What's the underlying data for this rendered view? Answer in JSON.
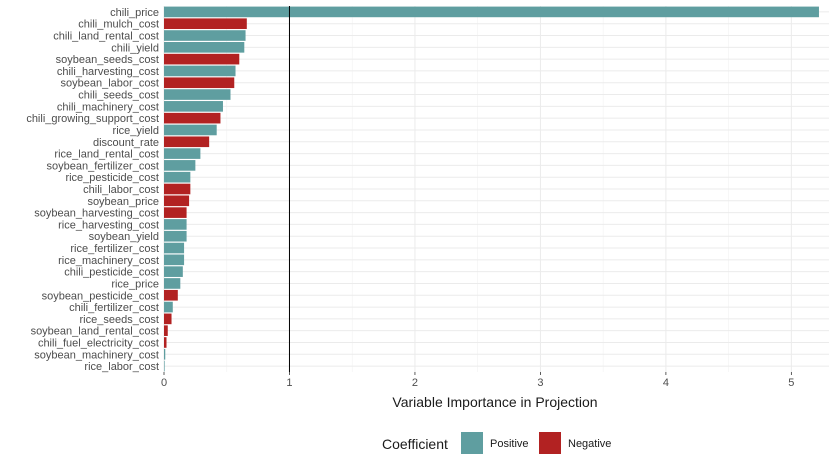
{
  "chart_data": {
    "type": "bar",
    "orientation": "horizontal",
    "xlabel": "Variable Importance in Projection",
    "ylabel": "",
    "xlim": [
      0,
      5.3
    ],
    "xticks": [
      0,
      1,
      2,
      3,
      4,
      5
    ],
    "reference_line": 1,
    "grid": true,
    "legend": {
      "title": "Coefficient",
      "placement": "bottom",
      "entries": [
        {
          "label": "Positive",
          "color": "#5f9ea0"
        },
        {
          "label": "Negative",
          "color": "#b22222"
        }
      ]
    },
    "bars": [
      {
        "name": "chili_price",
        "value": 5.22,
        "sign": "Positive"
      },
      {
        "name": "chili_mulch_cost",
        "value": 0.66,
        "sign": "Negative"
      },
      {
        "name": "chili_land_rental_cost",
        "value": 0.65,
        "sign": "Positive"
      },
      {
        "name": "chili_yield",
        "value": 0.64,
        "sign": "Positive"
      },
      {
        "name": "soybean_seeds_cost",
        "value": 0.6,
        "sign": "Negative"
      },
      {
        "name": "chili_harvesting_cost",
        "value": 0.57,
        "sign": "Positive"
      },
      {
        "name": "soybean_labor_cost",
        "value": 0.56,
        "sign": "Negative"
      },
      {
        "name": "chili_seeds_cost",
        "value": 0.53,
        "sign": "Positive"
      },
      {
        "name": "chili_machinery_cost",
        "value": 0.47,
        "sign": "Positive"
      },
      {
        "name": "chili_growing_support_cost",
        "value": 0.45,
        "sign": "Negative"
      },
      {
        "name": "rice_yield",
        "value": 0.42,
        "sign": "Positive"
      },
      {
        "name": "discount_rate",
        "value": 0.36,
        "sign": "Negative"
      },
      {
        "name": "rice_land_rental_cost",
        "value": 0.29,
        "sign": "Positive"
      },
      {
        "name": "soybean_fertilizer_cost",
        "value": 0.25,
        "sign": "Positive"
      },
      {
        "name": "rice_pesticide_cost",
        "value": 0.21,
        "sign": "Positive"
      },
      {
        "name": "chili_labor_cost",
        "value": 0.21,
        "sign": "Negative"
      },
      {
        "name": "soybean_price",
        "value": 0.2,
        "sign": "Negative"
      },
      {
        "name": "soybean_harvesting_cost",
        "value": 0.18,
        "sign": "Negative"
      },
      {
        "name": "rice_harvesting_cost",
        "value": 0.18,
        "sign": "Positive"
      },
      {
        "name": "soybean_yield",
        "value": 0.18,
        "sign": "Positive"
      },
      {
        "name": "rice_fertilizer_cost",
        "value": 0.16,
        "sign": "Positive"
      },
      {
        "name": "rice_machinery_cost",
        "value": 0.16,
        "sign": "Positive"
      },
      {
        "name": "chili_pesticide_cost",
        "value": 0.15,
        "sign": "Positive"
      },
      {
        "name": "rice_price",
        "value": 0.13,
        "sign": "Positive"
      },
      {
        "name": "soybean_pesticide_cost",
        "value": 0.11,
        "sign": "Negative"
      },
      {
        "name": "chili_fertilizer_cost",
        "value": 0.07,
        "sign": "Positive"
      },
      {
        "name": "rice_seeds_cost",
        "value": 0.06,
        "sign": "Negative"
      },
      {
        "name": "soybean_land_rental_cost",
        "value": 0.03,
        "sign": "Negative"
      },
      {
        "name": "chili_fuel_electricity_cost",
        "value": 0.02,
        "sign": "Negative"
      },
      {
        "name": "soybean_machinery_cost",
        "value": 0.01,
        "sign": "Positive"
      },
      {
        "name": "rice_labor_cost",
        "value": 0.005,
        "sign": "Positive"
      }
    ]
  }
}
